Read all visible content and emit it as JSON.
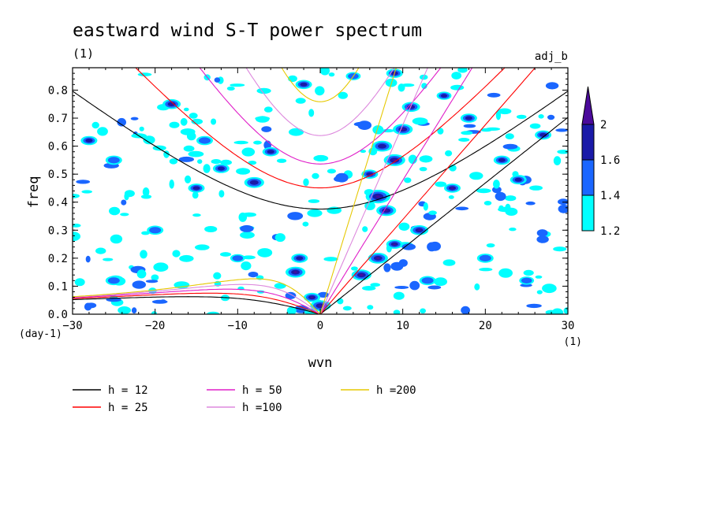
{
  "title": "eastward wind S-T power spectrum",
  "subtitle_left": "(1)",
  "subtitle_right": "adj_b",
  "chart_data": {
    "type": "heatmap",
    "description_note": "",
    "xlabel": "wvn",
    "xunit": "(1)",
    "ylabel": "freq",
    "yunit": "(day-1)",
    "xlim": [
      -30,
      30
    ],
    "ylim": [
      0,
      0.88
    ],
    "x_ticks": [
      -30,
      -20,
      -10,
      0,
      10,
      20,
      30
    ],
    "y_ticks": [
      0.0,
      0.1,
      0.2,
      0.3,
      0.4,
      0.5,
      0.6,
      0.7,
      0.8
    ],
    "y_tick_labels": [
      "0.0",
      "0.1",
      "0.2",
      "0.3",
      "0.4",
      "0.5",
      "0.6",
      "0.7",
      "0.8"
    ],
    "colorbar": {
      "levels": [
        1.2,
        1.4,
        1.6,
        2
      ],
      "labels": [
        "1.2",
        "1.4",
        "1.6",
        "2"
      ],
      "colors": [
        "#00ffff",
        "#1a66ff",
        "#1a1aa8",
        "#4b0a9b"
      ]
    },
    "series": [
      {
        "name": "h = 12",
        "depth_m": 12,
        "color": "#000000"
      },
      {
        "name": "h = 25",
        "depth_m": 25,
        "color": "#ff0000"
      },
      {
        "name": "h = 50",
        "depth_m": 50,
        "color": "#e01ec8"
      },
      {
        "name": "h =100",
        "depth_m": 100,
        "color": "#dd88dd"
      },
      {
        "name": "h =200",
        "depth_m": 200,
        "color": "#e6c800"
      }
    ],
    "blobs": [
      {
        "x": 0,
        "y": 0.03,
        "r": 1.2,
        "level": 3
      },
      {
        "x": -1,
        "y": 0.06,
        "r": 1.0,
        "level": 3
      },
      {
        "x": -3,
        "y": 0.15,
        "r": 1.2,
        "level": 3
      },
      {
        "x": -2.5,
        "y": 0.2,
        "r": 1.0,
        "level": 2
      },
      {
        "x": 7,
        "y": 0.42,
        "r": 1.5,
        "level": 3
      },
      {
        "x": 8,
        "y": 0.37,
        "r": 1.2,
        "level": 3
      },
      {
        "x": 9,
        "y": 0.55,
        "r": 1.3,
        "level": 3
      },
      {
        "x": 10,
        "y": 0.66,
        "r": 1.2,
        "level": 3
      },
      {
        "x": 11,
        "y": 0.74,
        "r": 1.1,
        "level": 3
      },
      {
        "x": 9,
        "y": 0.86,
        "r": 1.0,
        "level": 3
      },
      {
        "x": 7.5,
        "y": 0.6,
        "r": 1.2,
        "level": 2
      },
      {
        "x": 6,
        "y": 0.5,
        "r": 1.0,
        "level": 2
      },
      {
        "x": 5,
        "y": 0.14,
        "r": 1.2,
        "level": 3
      },
      {
        "x": 7,
        "y": 0.2,
        "r": 1.2,
        "level": 3
      },
      {
        "x": 9,
        "y": 0.25,
        "r": 1.0,
        "level": 3
      },
      {
        "x": 12,
        "y": 0.3,
        "r": 1.1,
        "level": 3
      },
      {
        "x": 16,
        "y": 0.45,
        "r": 1.0,
        "level": 3
      },
      {
        "x": 22,
        "y": 0.55,
        "r": 1.0,
        "level": 2
      },
      {
        "x": 18,
        "y": 0.7,
        "r": 1.0,
        "level": 2
      },
      {
        "x": 15,
        "y": 0.78,
        "r": 0.9,
        "level": 2
      },
      {
        "x": 24,
        "y": 0.48,
        "r": 1.0,
        "level": 2
      },
      {
        "x": 27,
        "y": 0.64,
        "r": 1.0,
        "level": 2
      },
      {
        "x": -8,
        "y": 0.47,
        "r": 1.2,
        "level": 2
      },
      {
        "x": -6,
        "y": 0.58,
        "r": 1.0,
        "level": 2
      },
      {
        "x": -12,
        "y": 0.52,
        "r": 1.0,
        "level": 2
      },
      {
        "x": -15,
        "y": 0.45,
        "r": 1.0,
        "level": 2
      },
      {
        "x": -18,
        "y": 0.75,
        "r": 1.1,
        "level": 2
      },
      {
        "x": -25,
        "y": 0.55,
        "r": 1.0,
        "level": 1
      },
      {
        "x": -28,
        "y": 0.62,
        "r": 1.0,
        "level": 2
      },
      {
        "x": -20,
        "y": 0.3,
        "r": 1.0,
        "level": 1
      },
      {
        "x": -14,
        "y": 0.62,
        "r": 1.0,
        "level": 1
      },
      {
        "x": -2,
        "y": 0.82,
        "r": 1.0,
        "level": 2
      },
      {
        "x": 4,
        "y": 0.85,
        "r": 0.9,
        "level": 1
      },
      {
        "x": 13,
        "y": 0.12,
        "r": 1.0,
        "level": 1
      },
      {
        "x": 20,
        "y": 0.2,
        "r": 1.0,
        "level": 1
      },
      {
        "x": 25,
        "y": 0.12,
        "r": 0.9,
        "level": 1
      },
      {
        "x": -25,
        "y": 0.12,
        "r": 1.0,
        "level": 1
      },
      {
        "x": -10,
        "y": 0.2,
        "r": 0.9,
        "level": 1
      }
    ]
  }
}
